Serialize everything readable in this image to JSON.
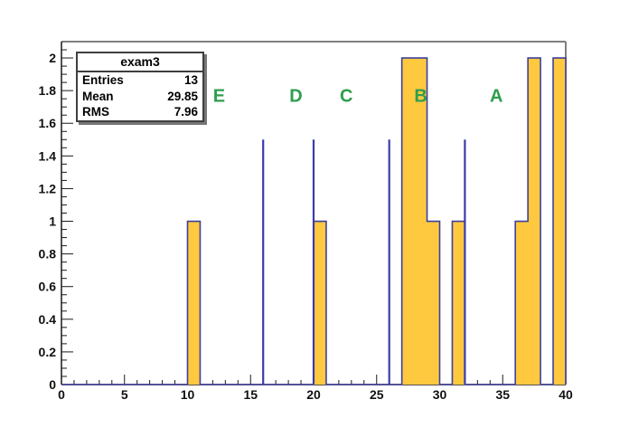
{
  "stats_box": {
    "title": "exam3",
    "rows": [
      {
        "label": "Entries",
        "value": "13"
      },
      {
        "label": "Mean",
        "value": "29.85"
      },
      {
        "label": "RMS",
        "value": "7.96"
      }
    ]
  },
  "chart_data": {
    "type": "bar",
    "title": "exam3",
    "xlabel": "",
    "ylabel": "",
    "xlim": [
      0,
      40
    ],
    "ylim": [
      0,
      2.1
    ],
    "grid": false,
    "bin_start": 0,
    "bin_width": 1,
    "counts": [
      0,
      0,
      0,
      0,
      0,
      0,
      0,
      0,
      0,
      0,
      1,
      0,
      0,
      0,
      0,
      0,
      0,
      0,
      0,
      0,
      1,
      0,
      0,
      0,
      0,
      0,
      0,
      2,
      2,
      1,
      0,
      1,
      0,
      0,
      0,
      0,
      1,
      2,
      0,
      2
    ],
    "x_ticks": {
      "major_step": 5,
      "minor_step": 1,
      "labels": [
        "0",
        "5",
        "10",
        "15",
        "20",
        "25",
        "30",
        "35",
        "40"
      ]
    },
    "y_ticks": {
      "major_step": 0.2,
      "minor_step": 0.05,
      "labels": [
        "0",
        "0.2",
        "0.4",
        "0.6",
        "0.8",
        "1",
        "1.2",
        "1.4",
        "1.6",
        "1.8",
        "2"
      ]
    },
    "grade_boundaries": [
      {
        "x": 16,
        "height": 1.5
      },
      {
        "x": 20,
        "height": 1.5
      },
      {
        "x": 26,
        "height": 1.5
      },
      {
        "x": 32,
        "height": 1.5
      }
    ],
    "grade_labels": [
      {
        "label": "E",
        "x": 12.5,
        "y": 1.77
      },
      {
        "label": "D",
        "x": 18.6,
        "y": 1.77
      },
      {
        "label": "C",
        "x": 22.6,
        "y": 1.77
      },
      {
        "label": "B",
        "x": 28.5,
        "y": 1.77
      },
      {
        "label": "A",
        "x": 34.5,
        "y": 1.77
      }
    ],
    "colors": {
      "bar_fill": "#fec93f",
      "bar_outline": "#3f3f9c",
      "boundary_line": "#3b3bac",
      "grade_label": "#2e9e4e",
      "frame_gray": "#7f7f7f",
      "axis": "#1a1a1a",
      "text": "#111111"
    }
  }
}
